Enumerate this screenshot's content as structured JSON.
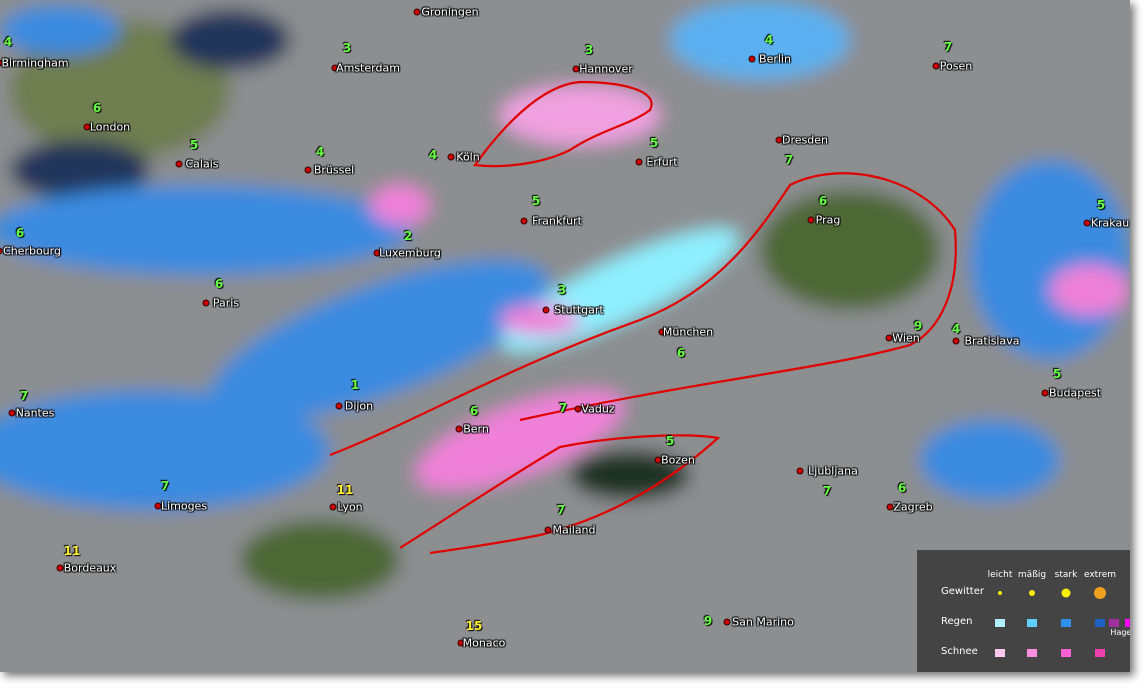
{
  "cities": [
    {
      "name": "Birmingham",
      "temp": 4
    },
    {
      "name": "Groningen"
    },
    {
      "name": "Amsterdam",
      "temp": 3
    },
    {
      "name": "Hannover",
      "temp": 3
    },
    {
      "name": "Berlin",
      "temp": 4
    },
    {
      "name": "Posen",
      "temp": 7
    },
    {
      "name": "London",
      "temp": 6
    },
    {
      "name": "Calais",
      "temp": 5
    },
    {
      "name": "Brüssel",
      "temp": 4
    },
    {
      "name": "Köln",
      "temp": 4
    },
    {
      "name": "Erfurt",
      "temp": 5
    },
    {
      "name": "Dresden",
      "temp": 7
    },
    {
      "name": "Frankfurt",
      "temp": 5
    },
    {
      "name": "Luxemburg",
      "temp": 2
    },
    {
      "name": "Cherbourg",
      "temp": 6
    },
    {
      "name": "Paris",
      "temp": 6
    },
    {
      "name": "Stuttgart",
      "temp": 3
    },
    {
      "name": "Prag",
      "temp": 6
    },
    {
      "name": "Krakau",
      "temp": 5
    },
    {
      "name": "München",
      "temp": 6
    },
    {
      "name": "Wien",
      "temp": 9
    },
    {
      "name": "Bratislava",
      "temp": 4
    },
    {
      "name": "Nantes",
      "temp": 7
    },
    {
      "name": "Dijon",
      "temp": 1
    },
    {
      "name": "Bern",
      "temp": 6
    },
    {
      "name": "Vaduz",
      "temp": 7
    },
    {
      "name": "Bozen",
      "temp": 5
    },
    {
      "name": "Budapest",
      "temp": 5
    },
    {
      "name": "Ljubljana",
      "temp": 7
    },
    {
      "name": "Limoges",
      "temp": 7
    },
    {
      "name": "Lyon",
      "temp": 11
    },
    {
      "name": "Mailand",
      "temp": 7
    },
    {
      "name": "Zagreb",
      "temp": 6
    },
    {
      "name": "Bordeaux",
      "temp": 11
    },
    {
      "name": "Monaco",
      "temp": 15
    },
    {
      "name": "San Marino",
      "temp": 9
    }
  ],
  "legend": {
    "levels": [
      "leicht",
      "mäßig",
      "stark",
      "extrem"
    ],
    "rows": [
      "Gewitter",
      "Regen",
      "Schnee"
    ],
    "hail": "Hagel"
  }
}
